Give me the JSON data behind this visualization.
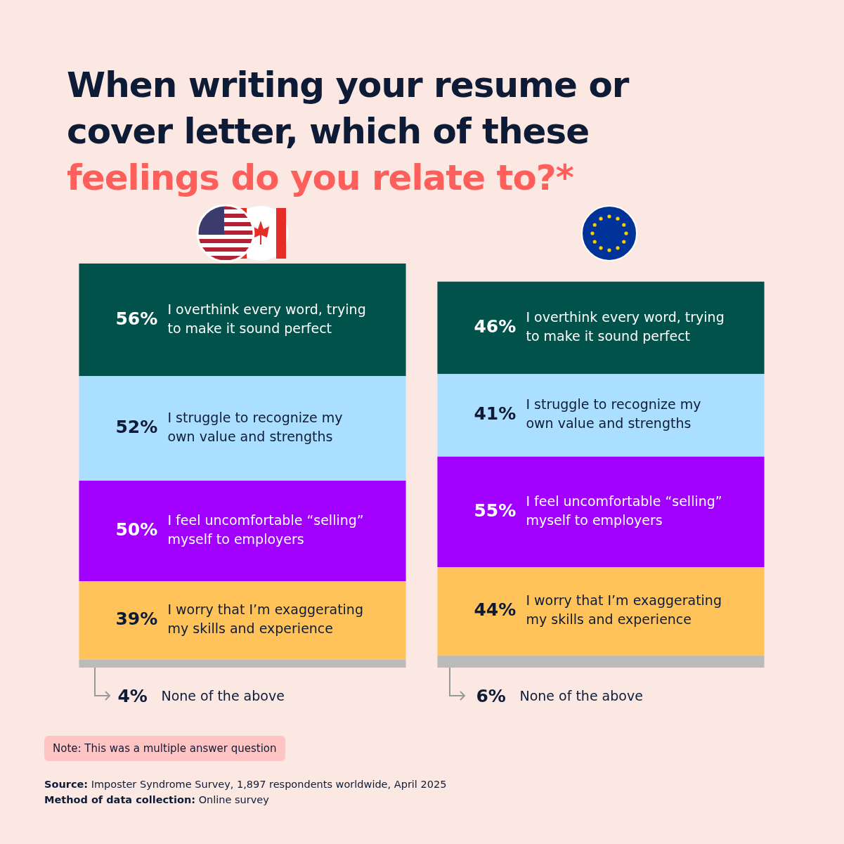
{
  "chart_data": {
    "type": "bar",
    "title": "When writing your resume or cover letter, which of these feelings do you relate to?*",
    "categories": [
      null,
      null
    ],
    "stacked": true,
    "legend": false,
    "series": [
      {
        "name": "None of the above",
        "color": "#bbbbbb",
        "values": [
          4,
          6
        ],
        "value_labels": [
          "4%",
          "6%"
        ]
      },
      {
        "name": "I worry that I’m exaggerating my skills and experience",
        "color": "#ffc35a",
        "values": [
          39,
          44
        ],
        "value_labels": [
          "39%",
          "44%"
        ]
      },
      {
        "name": "I feel uncomfortable “selling” myself to employers",
        "color": "#a100ff",
        "values": [
          50,
          55
        ],
        "value_labels": [
          "50%",
          "55%"
        ]
      },
      {
        "name": "I struggle to recognize my own value and strengths",
        "color": "#aadfff",
        "values": [
          52,
          41
        ],
        "value_labels": [
          "52%",
          "41%"
        ]
      },
      {
        "name": "I overthink every word, trying to make it sound perfect",
        "color": "#00524a",
        "values": [
          56,
          46
        ],
        "value_labels": [
          "56%",
          "46%"
        ]
      }
    ],
    "annotations": [
      "Note: This was a multiple answer question",
      "Source: Imposter Syndrome Survey, 1,897 respondents worldwide, April 2025",
      "Method of data collection: Online survey"
    ]
  }
}
